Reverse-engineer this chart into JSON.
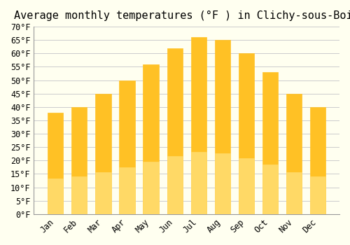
{
  "title": "Average monthly temperatures (°F ) in Clichy-sous-Bois",
  "months": [
    "Jan",
    "Feb",
    "Mar",
    "Apr",
    "May",
    "Jun",
    "Jul",
    "Aug",
    "Sep",
    "Oct",
    "Nov",
    "Dec"
  ],
  "values": [
    38,
    40,
    45,
    50,
    56,
    62,
    66,
    65,
    60,
    53,
    45,
    40
  ],
  "bar_color_top": "#FFC125",
  "bar_color_bottom": "#FFD966",
  "ylim": [
    0,
    70
  ],
  "yticks": [
    0,
    5,
    10,
    15,
    20,
    25,
    30,
    35,
    40,
    45,
    50,
    55,
    60,
    65,
    70
  ],
  "background_color": "#FFFFF0",
  "grid_color": "#CCCCCC",
  "title_fontsize": 11,
  "tick_fontsize": 8.5,
  "font_family": "monospace"
}
